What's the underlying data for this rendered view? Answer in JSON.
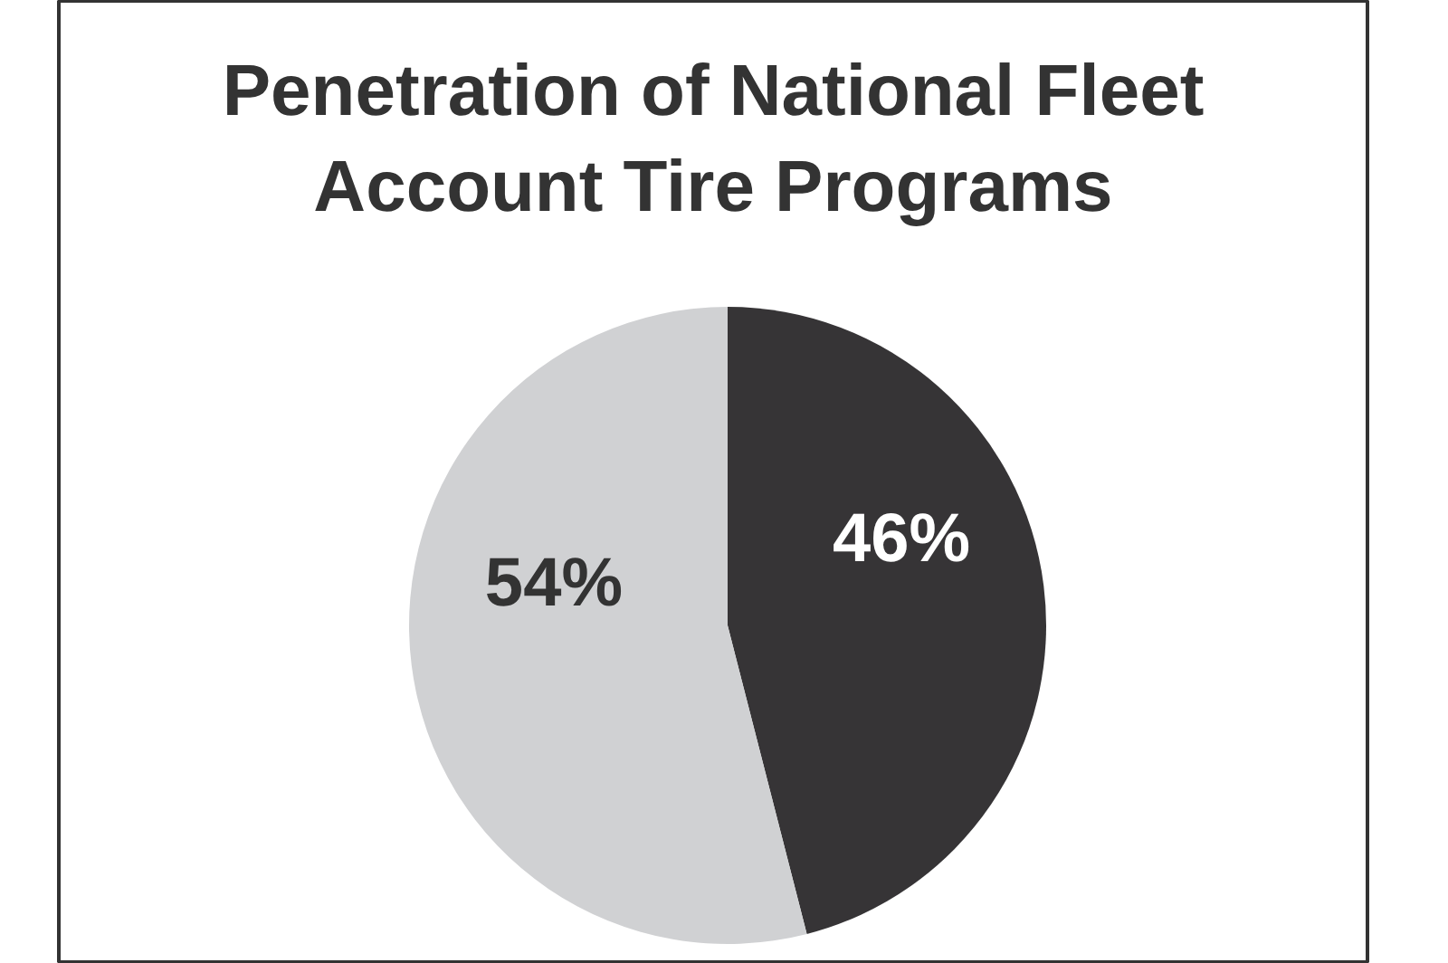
{
  "chart_data": {
    "type": "pie",
    "title": "Penetration of National Fleet Account Tire Programs",
    "categories": [
      null,
      null
    ],
    "values": [
      46,
      54
    ],
    "colors": [
      "#363436",
      "#d0d1d3"
    ],
    "value_labels": [
      "46%",
      "54%"
    ]
  }
}
